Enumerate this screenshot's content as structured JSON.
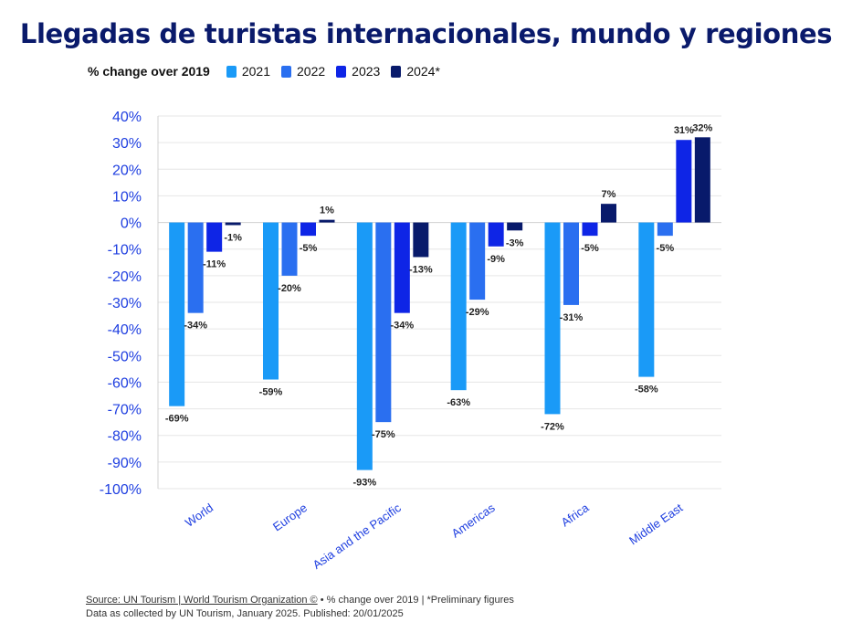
{
  "title": "Llegadas de turistas internacionales, mundo y regiones",
  "legend": {
    "heading": "% change over 2019",
    "items": [
      {
        "label": "2021",
        "color": "#1a9af7"
      },
      {
        "label": "2022",
        "color": "#2a6ff0"
      },
      {
        "label": "2023",
        "color": "#0e25e6"
      },
      {
        "label": "2024*",
        "color": "#081a6b"
      }
    ]
  },
  "chart_data": {
    "type": "bar",
    "title": "Llegadas de turistas internacionales, mundo y regiones",
    "ylabel": "% change over 2019",
    "categories": [
      "World",
      "Europe",
      "Asia and the Pacific",
      "Americas",
      "Africa",
      "Middle East"
    ],
    "series": [
      {
        "name": "2021",
        "color": "#1a9af7",
        "values": [
          -69,
          -59,
          -93,
          -63,
          -72,
          -58
        ],
        "labels": [
          "-69%",
          "-59%",
          "-93%",
          "-63%",
          "-72%",
          "-58%"
        ]
      },
      {
        "name": "2022",
        "color": "#2a6ff0",
        "values": [
          -34,
          -20,
          -75,
          -29,
          -31,
          -5
        ],
        "labels": [
          "-34%",
          "-20%",
          "-75%",
          "-29%",
          "-31%",
          "-5%"
        ]
      },
      {
        "name": "2023",
        "color": "#0e25e6",
        "values": [
          -11,
          -5,
          -34,
          -9,
          -5,
          31
        ],
        "labels": [
          "-11%",
          "-5%",
          "-34%",
          "-9%",
          "-5%",
          "31%"
        ]
      },
      {
        "name": "2024*",
        "color": "#081a6b",
        "values": [
          -1,
          1,
          -13,
          -3,
          7,
          32
        ],
        "labels": [
          "-1%",
          "1%",
          "-13%",
          "-3%",
          "7%",
          "32%"
        ]
      }
    ],
    "ylim": [
      -100,
      40
    ],
    "yticks": [
      40,
      30,
      20,
      10,
      0,
      -10,
      -20,
      -30,
      -40,
      -50,
      -60,
      -70,
      -80,
      -90,
      -100
    ],
    "yticklabels": [
      "40%",
      "30%",
      "20%",
      "10%",
      "0%",
      "-10%",
      "-20%",
      "-30%",
      "-40%",
      "-50%",
      "-60%",
      "-70%",
      "-80%",
      "-90%",
      "-100%"
    ],
    "grid": true,
    "legend_position": "top-left"
  },
  "footer": {
    "source": "Source: UN Tourism | World Tourism Organization ©",
    "note": " • % change over 2019 | *Preliminary figures",
    "line2": "Data as collected by UN Tourism, January 2025. Published: 20/01/2025"
  }
}
